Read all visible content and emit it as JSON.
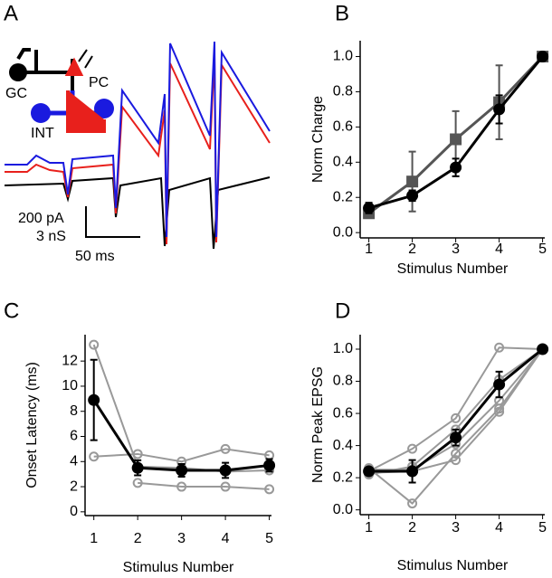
{
  "chart_data": [
    {
      "type": "trace",
      "panel": "A",
      "annotations": [
        "GC",
        "PC",
        "INT"
      ],
      "scale_bars": [
        "200 pA",
        "3 nS",
        "50 ms"
      ]
    },
    {
      "type": "line",
      "panel": "B",
      "ylabel": "Norm Charge",
      "xlabel": "Stimulus Number",
      "x": [
        1,
        2,
        3,
        4,
        5
      ],
      "xlim": [
        0.8,
        5.05
      ],
      "xticks": [
        1,
        2,
        3,
        4,
        5
      ],
      "ylim": [
        -0.03,
        1.09
      ],
      "yticks": [
        {
          "value": 0,
          "label": "0.0"
        },
        0.2,
        0.4,
        0.6,
        0.8,
        {
          "value": 1,
          "label": "1.0"
        }
      ],
      "series": [
        {
          "color": "#555555",
          "marker": "square",
          "filled": true,
          "values": [
            0.11,
            0.29,
            0.53,
            0.74,
            1.0
          ],
          "errors": [
            0.02,
            0.17,
            0.16,
            0.21,
            0
          ]
        },
        {
          "color": "#000000",
          "marker": "circle",
          "filled": true,
          "values": [
            0.14,
            0.21,
            0.37,
            0.7,
            1.0
          ],
          "errors": [
            0.03,
            0.03,
            0.05,
            0.08,
            0
          ]
        }
      ]
    },
    {
      "type": "line",
      "panel": "C",
      "ylabel": "Onset Latency (ms)",
      "xlabel": "Stimulus Number",
      "x": [
        1,
        2,
        3,
        4,
        5
      ],
      "xlim": [
        0.8,
        5.05
      ],
      "xticks": [
        1,
        2,
        3,
        4,
        5
      ],
      "ylim": [
        -0.3,
        14.1
      ],
      "yticks": [
        0,
        2,
        4,
        6,
        8,
        10,
        12
      ],
      "series": [
        {
          "color": "#999999",
          "marker": "circle",
          "filled": false,
          "values": [
            13.3,
            3.6,
            3.5,
            3.2,
            3.3
          ]
        },
        {
          "color": "#999999",
          "marker": "circle",
          "filled": false,
          "values": [
            4.4,
            4.6,
            4.0,
            5.0,
            4.5
          ]
        },
        {
          "color": "#999999",
          "marker": "circle",
          "filled": false,
          "values": [
            null,
            2.3,
            2.0,
            2.0,
            1.8
          ]
        },
        {
          "color": "#000000",
          "marker": "circle",
          "filled": true,
          "values": [
            8.9,
            3.5,
            3.3,
            3.3,
            3.7
          ],
          "errors": [
            3.2,
            0.6,
            0.5,
            0.6,
            0.5
          ]
        }
      ]
    },
    {
      "type": "line",
      "panel": "D",
      "ylabel": "Norm Peak EPSG",
      "xlabel": "Stimulus Number",
      "x": [
        1,
        2,
        3,
        4,
        5
      ],
      "xlim": [
        0.8,
        5.05
      ],
      "xticks": [
        1,
        2,
        3,
        4,
        5
      ],
      "ylim": [
        -0.03,
        1.09
      ],
      "yticks": [
        {
          "value": 0,
          "label": "0.0"
        },
        0.2,
        0.4,
        0.6,
        0.8,
        {
          "value": 1,
          "label": "1.0"
        }
      ],
      "series": [
        {
          "color": "#999999",
          "marker": "circle",
          "filled": false,
          "values": [
            0.26,
            0.04,
            0.35,
            0.63,
            1.0
          ]
        },
        {
          "color": "#999999",
          "marker": "circle",
          "filled": false,
          "values": [
            0.24,
            0.38,
            0.57,
            1.01,
            1.0
          ]
        },
        {
          "color": "#999999",
          "marker": "circle",
          "filled": false,
          "values": [
            0.22,
            0.27,
            0.5,
            0.81,
            1.0
          ]
        },
        {
          "color": "#999999",
          "marker": "circle",
          "filled": false,
          "values": [
            0.25,
            0.25,
            0.41,
            0.68,
            1.0
          ]
        },
        {
          "color": "#999999",
          "marker": "circle",
          "filled": false,
          "values": [
            0.23,
            0.24,
            0.31,
            0.61,
            1.0
          ]
        },
        {
          "color": "#000000",
          "marker": "circle",
          "filled": true,
          "values": [
            0.24,
            0.24,
            0.45,
            0.78,
            1.0
          ],
          "errors": [
            0.02,
            0.07,
            0.05,
            0.08,
            0
          ]
        }
      ]
    }
  ]
}
